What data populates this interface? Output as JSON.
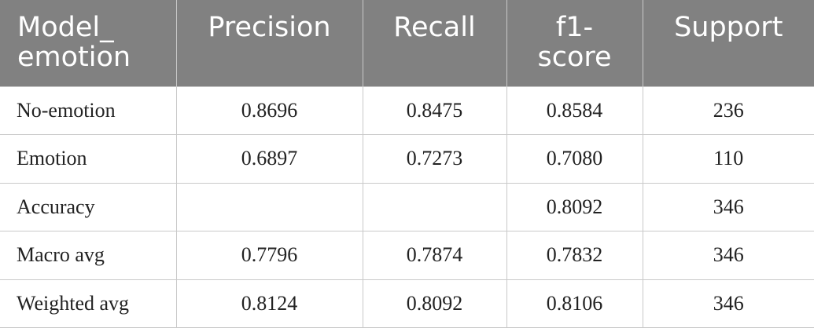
{
  "table": {
    "headers": [
      "Model_\nemotion",
      "Precision",
      "Recall",
      "f1-\nscore",
      "Support"
    ],
    "rows": [
      [
        "No-emotion",
        "0.8696",
        "0.8475",
        "0.8584",
        "236"
      ],
      [
        "Emotion",
        "0.6897",
        "0.7273",
        "0.7080",
        "110"
      ],
      [
        "Accuracy",
        "",
        "",
        "0.8092",
        "346"
      ],
      [
        "Macro avg",
        "0.7796",
        "0.7874",
        "0.7832",
        "346"
      ],
      [
        "Weighted avg",
        "0.8124",
        "0.8092",
        "0.8106",
        "346"
      ]
    ]
  },
  "colors": {
    "header_background": "#818181",
    "header_text": "#ffffff",
    "grid_line": "#c9c9c9",
    "body_text": "#222222"
  }
}
